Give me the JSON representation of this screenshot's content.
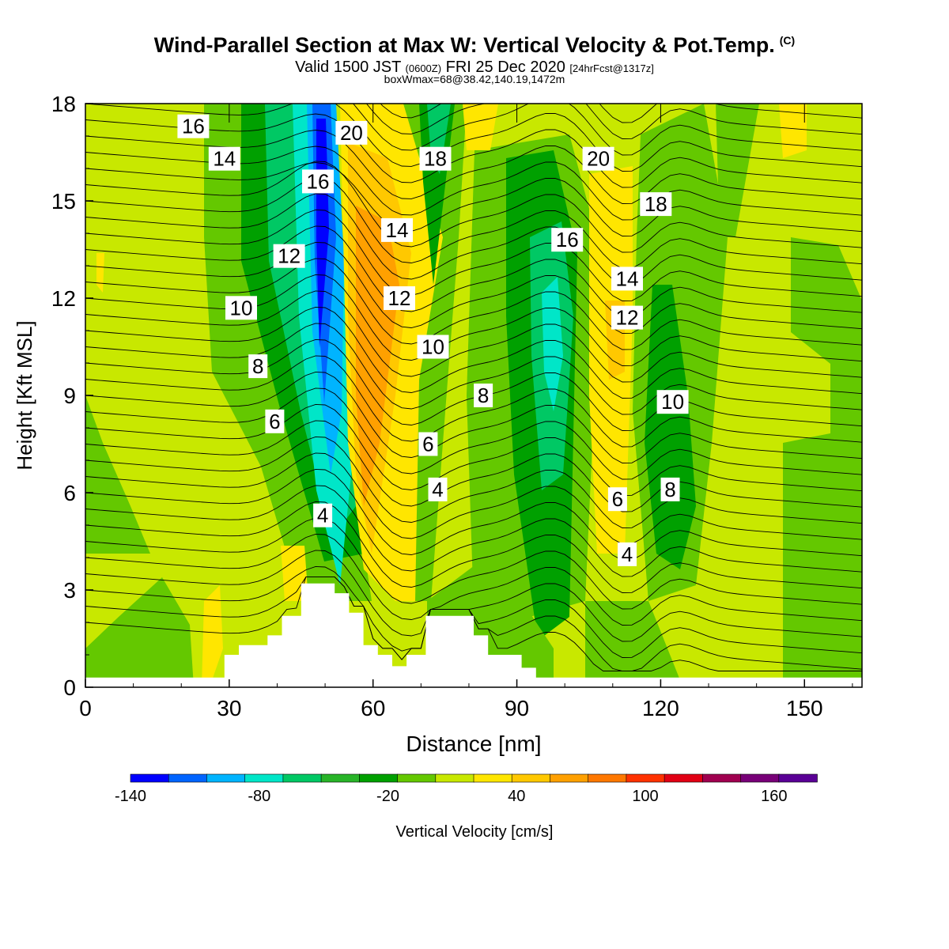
{
  "title": {
    "main": "Wind-Parallel Section at Max W: Vertical Velocity & Pot.Temp.",
    "copyright": "(C)",
    "valid_prefix": "Valid 1500 JST",
    "valid_zulu": "(0600Z)",
    "valid_date": "FRI 25 Dec 2020",
    "forecast": "[24hrFcst@1317z]",
    "box_info": "boxWmax=68@38.42,140.19,1472m"
  },
  "colors": {
    "background_field": "#c8e800",
    "terrain_fill": "#ffffff",
    "contour_line": "#000000",
    "colorbar": [
      "#0000ff",
      "#0064ff",
      "#00b4ff",
      "#00e6c8",
      "#00c864",
      "#28b428",
      "#00a000",
      "#64c800",
      "#c8e800",
      "#ffe600",
      "#ffc800",
      "#ffa000",
      "#ff7800",
      "#ff3200",
      "#e10014",
      "#a00050",
      "#780078",
      "#5a0096"
    ]
  },
  "chart_data": {
    "type": "heatmap",
    "xlabel": "Distance [nm]",
    "ylabel": "Height [Kft MSL]",
    "xlim": [
      0,
      162
    ],
    "ylim": [
      0,
      18
    ],
    "x_ticks": [
      0,
      30,
      60,
      90,
      120,
      150
    ],
    "y_ticks": [
      0,
      3,
      6,
      9,
      12,
      15,
      18
    ],
    "colorbar": {
      "label": "Vertical Velocity [cm/s]",
      "tick_labels": [
        "-140",
        "-80",
        "-20",
        "40",
        "100",
        "160"
      ],
      "range": [
        -140,
        180
      ],
      "step": 20
    },
    "contour_field": "potential temperature",
    "contour_labels": [
      {
        "text": "16",
        "x": 22.5,
        "y": 17.3
      },
      {
        "text": "20",
        "x": 55.5,
        "y": 17.1
      },
      {
        "text": "14",
        "x": 29,
        "y": 16.3
      },
      {
        "text": "18",
        "x": 73,
        "y": 16.3
      },
      {
        "text": "20",
        "x": 107,
        "y": 16.3
      },
      {
        "text": "16",
        "x": 48.5,
        "y": 15.6
      },
      {
        "text": "18",
        "x": 119,
        "y": 14.9
      },
      {
        "text": "14",
        "x": 65,
        "y": 14.1
      },
      {
        "text": "16",
        "x": 100.5,
        "y": 13.8
      },
      {
        "text": "12",
        "x": 42.5,
        "y": 13.3
      },
      {
        "text": "14",
        "x": 113,
        "y": 12.6
      },
      {
        "text": "12",
        "x": 65.5,
        "y": 12.0
      },
      {
        "text": "10",
        "x": 32.5,
        "y": 11.7
      },
      {
        "text": "12",
        "x": 113,
        "y": 11.4
      },
      {
        "text": "10",
        "x": 72.5,
        "y": 10.5
      },
      {
        "text": "8",
        "x": 36,
        "y": 9.9
      },
      {
        "text": "8",
        "x": 83,
        "y": 9.0
      },
      {
        "text": "10",
        "x": 122.5,
        "y": 8.8
      },
      {
        "text": "6",
        "x": 39.5,
        "y": 8.2
      },
      {
        "text": "6",
        "x": 71.5,
        "y": 7.5
      },
      {
        "text": "4",
        "x": 73.5,
        "y": 6.1
      },
      {
        "text": "8",
        "x": 122,
        "y": 6.1
      },
      {
        "text": "6",
        "x": 111,
        "y": 5.8
      },
      {
        "text": "4",
        "x": 49.5,
        "y": 5.3
      },
      {
        "text": "4",
        "x": 113,
        "y": 4.1
      }
    ],
    "terrain_profile_kft": [
      [
        0,
        0.3
      ],
      [
        29,
        0.3
      ],
      [
        29,
        1.0
      ],
      [
        32,
        1.0
      ],
      [
        32,
        1.3
      ],
      [
        38,
        1.3
      ],
      [
        38,
        1.6
      ],
      [
        41,
        1.6
      ],
      [
        41,
        2.2
      ],
      [
        45,
        2.2
      ],
      [
        45,
        3.2
      ],
      [
        52,
        3.2
      ],
      [
        52,
        2.9
      ],
      [
        55,
        2.9
      ],
      [
        55,
        2.3
      ],
      [
        58,
        2.3
      ],
      [
        58,
        1.3
      ],
      [
        61,
        1.3
      ],
      [
        61,
        1.0
      ],
      [
        64,
        1.0
      ],
      [
        64,
        0.65
      ],
      [
        67,
        0.65
      ],
      [
        67,
        1.0
      ],
      [
        71,
        1.0
      ],
      [
        71,
        2.2
      ],
      [
        81,
        2.2
      ],
      [
        81,
        1.6
      ],
      [
        84,
        1.6
      ],
      [
        84,
        1.0
      ],
      [
        91,
        1.0
      ],
      [
        91,
        0.6
      ],
      [
        94,
        0.6
      ],
      [
        94,
        0.3
      ],
      [
        162,
        0.3
      ]
    ]
  }
}
